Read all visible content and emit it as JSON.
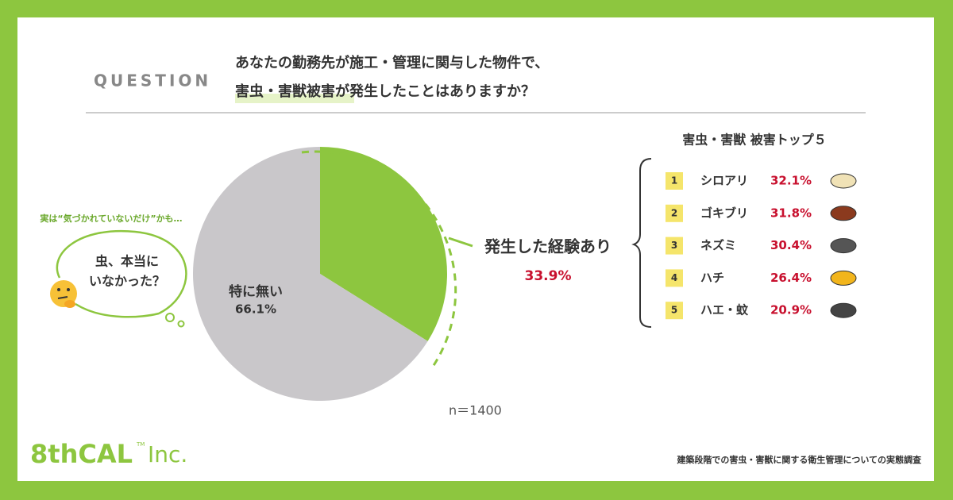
{
  "question_label": "QUESTION",
  "question_line1": "あなたの勤務先が施工・管理に関与した物件で、",
  "question_line2_highlight": "害虫・害獣被害",
  "question_line2_rest": "が発生したことはありますか？",
  "chart_data": {
    "type": "pie",
    "categories": [
      "発生した経験あり",
      "特に無い"
    ],
    "values": [
      33.9,
      66.1
    ],
    "value_labels": [
      "33.9%",
      "66.1%"
    ],
    "colors": [
      "#8dc63f",
      "#c9c7ca"
    ],
    "note": "n＝1400"
  },
  "bubble": {
    "aside": "実は“気づかれていないだけ”かも…",
    "lines": [
      "虫、本当に",
      "いなかった？"
    ]
  },
  "ranking": {
    "title": "害虫・害獣 被害トップ５",
    "items": [
      {
        "rank": 1,
        "name": "シロアリ",
        "percent": "32.1%"
      },
      {
        "rank": 2,
        "name": "ゴキブリ",
        "percent": "31.8%"
      },
      {
        "rank": 3,
        "name": "ネズミ",
        "percent": "30.4%"
      },
      {
        "rank": 4,
        "name": "ハチ",
        "percent": "26.4%"
      },
      {
        "rank": 5,
        "name": "ハエ・蚊",
        "percent": "20.9%"
      }
    ]
  },
  "logo": {
    "name": "8thCAL",
    "tm": "TM",
    "suffix": "Inc."
  },
  "footer": "建築段階での害虫・害獣に関する衛生管理についての実態調査"
}
